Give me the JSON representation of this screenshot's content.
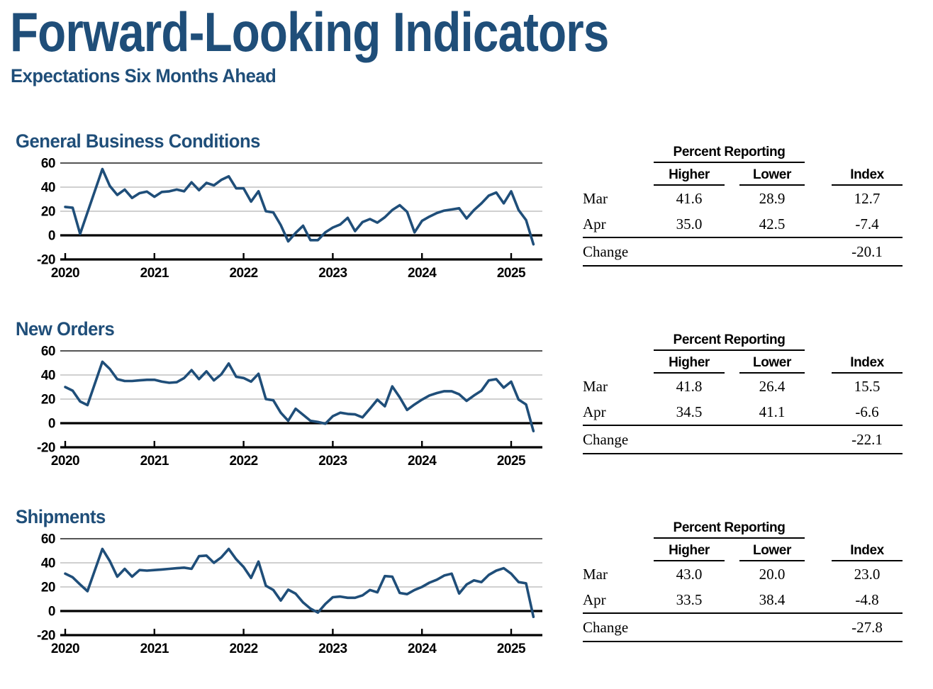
{
  "page": {
    "title": "Forward-Looking Indicators",
    "subtitle": "Expectations Six Months Ahead"
  },
  "colors": {
    "navy": "#1f4e79",
    "line": "#1f4e79",
    "grid": "#c9c9c9",
    "grid_top": "#3d3d3d",
    "axis": "#000000"
  },
  "sections": [
    {
      "title": "General Business Conditions",
      "table": {
        "group_header": "Percent Reporting",
        "columns": [
          "Higher",
          "Lower",
          "Index"
        ],
        "rows": [
          {
            "label": "Mar",
            "higher": "41.6",
            "lower": "28.9",
            "index": "12.7"
          },
          {
            "label": "Apr",
            "higher": "35.0",
            "lower": "42.5",
            "index": "-7.4"
          },
          {
            "label": "Change",
            "higher": "",
            "lower": "",
            "index": "-20.1"
          }
        ]
      }
    },
    {
      "title": "New Orders",
      "table": {
        "group_header": "Percent Reporting",
        "columns": [
          "Higher",
          "Lower",
          "Index"
        ],
        "rows": [
          {
            "label": "Mar",
            "higher": "41.8",
            "lower": "26.4",
            "index": "15.5"
          },
          {
            "label": "Apr",
            "higher": "34.5",
            "lower": "41.1",
            "index": "-6.6"
          },
          {
            "label": "Change",
            "higher": "",
            "lower": "",
            "index": "-22.1"
          }
        ]
      }
    },
    {
      "title": "Shipments",
      "table": {
        "group_header": "Percent Reporting",
        "columns": [
          "Higher",
          "Lower",
          "Index"
        ],
        "rows": [
          {
            "label": "Mar",
            "higher": "43.0",
            "lower": "20.0",
            "index": "23.0"
          },
          {
            "label": "Apr",
            "higher": "33.5",
            "lower": "38.4",
            "index": "-4.8"
          },
          {
            "label": "Change",
            "higher": "",
            "lower": "",
            "index": "-27.8"
          }
        ]
      }
    }
  ],
  "chart_data": [
    {
      "type": "line",
      "title": "General Business Conditions",
      "frequency": "monthly",
      "x_start": "2020-01",
      "x_end": "2025-04",
      "ylim": [
        -20,
        60
      ],
      "yticks": [
        60,
        40,
        20,
        0,
        -20
      ],
      "xticks": [
        "2020",
        "2021",
        "2022",
        "2023",
        "2024",
        "2025"
      ],
      "grid": true,
      "values": [
        23.6,
        22.9,
        1.2,
        19,
        37,
        55,
        41,
        33.5,
        38,
        31,
        35,
        36.3,
        32,
        36,
        36.5,
        38,
        36.5,
        44,
        37.5,
        43.5,
        41.5,
        46,
        49,
        39,
        39,
        28,
        36.6,
        20,
        19,
        8.5,
        -5,
        2,
        8,
        -4,
        -4,
        2.5,
        6.5,
        9,
        14.5,
        3.5,
        11,
        13.5,
        10.5,
        15,
        21,
        25,
        19.5,
        2.5,
        12,
        15.5,
        18.5,
        20.5,
        21.5,
        22.5,
        14,
        21,
        26.5,
        33,
        35.5,
        26.5,
        36.5,
        21,
        12.7,
        -7.4
      ]
    },
    {
      "type": "line",
      "title": "New Orders",
      "frequency": "monthly",
      "x_start": "2020-01",
      "x_end": "2025-04",
      "ylim": [
        -20,
        60
      ],
      "yticks": [
        60,
        40,
        20,
        0,
        -20
      ],
      "xticks": [
        "2020",
        "2021",
        "2022",
        "2023",
        "2024",
        "2025"
      ],
      "grid": true,
      "values": [
        30,
        27,
        18,
        15,
        33,
        51,
        45,
        36.5,
        35,
        35,
        35.5,
        36,
        36,
        34.5,
        33.5,
        34,
        37.5,
        44,
        36.5,
        43,
        35.5,
        40.5,
        49.5,
        38.5,
        37.5,
        34.5,
        41,
        20,
        19,
        8.7,
        2,
        12,
        7,
        2,
        1,
        -0.5,
        5.8,
        8.7,
        7.7,
        7.3,
        4.8,
        12,
        19.5,
        14,
        30.5,
        21.5,
        11,
        15.5,
        19.5,
        23,
        25,
        26.5,
        26.5,
        24,
        18.5,
        23,
        27,
        35.5,
        36.5,
        29.5,
        34.5,
        19.5,
        15.5,
        -6.6
      ]
    },
    {
      "type": "line",
      "title": "Shipments",
      "frequency": "monthly",
      "x_start": "2020-01",
      "x_end": "2025-04",
      "ylim": [
        -20,
        60
      ],
      "yticks": [
        60,
        40,
        20,
        0,
        -20
      ],
      "xticks": [
        "2020",
        "2021",
        "2022",
        "2023",
        "2024",
        "2025"
      ],
      "grid": true,
      "values": [
        31,
        28,
        22,
        16.5,
        34,
        51.5,
        41.5,
        28.5,
        35,
        28.5,
        34,
        33.5,
        34,
        34.5,
        35,
        35.5,
        36,
        35,
        45.5,
        46,
        40,
        44.5,
        51.5,
        43,
        36.5,
        27.5,
        41,
        21,
        17.5,
        8.7,
        17.7,
        14.4,
        7.1,
        2,
        -1.3,
        5.8,
        11.5,
        12,
        11,
        11,
        13,
        17.5,
        15.5,
        29,
        28.5,
        15,
        14,
        17.5,
        20,
        23.5,
        26,
        29.5,
        31,
        14.5,
        22,
        25.5,
        24,
        30,
        33.5,
        35.5,
        31,
        24,
        23,
        -4.8
      ]
    }
  ]
}
